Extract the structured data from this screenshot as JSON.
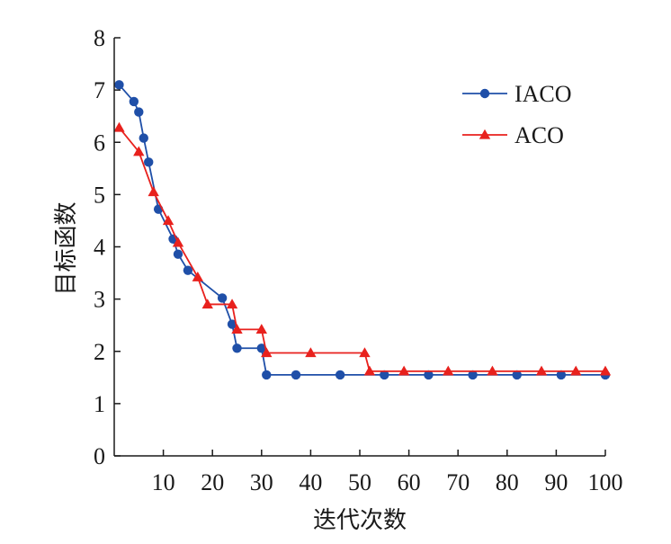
{
  "chart_data": {
    "type": "line",
    "xlabel": "迭代次数",
    "ylabel": "目标函数",
    "xlim": [
      0,
      100
    ],
    "ylim": [
      0,
      8
    ],
    "x_ticks": [
      "10",
      "20",
      "30",
      "40",
      "50",
      "60",
      "70",
      "80",
      "90",
      "100"
    ],
    "y_ticks": [
      "0",
      "1",
      "2",
      "3",
      "4",
      "5",
      "6",
      "7",
      "8"
    ],
    "legend_position": "top-right",
    "grid": false,
    "series": [
      {
        "name": "IACO",
        "color": "#1f4fa8",
        "marker": "circle",
        "points": [
          [
            1,
            7.1
          ],
          [
            4,
            6.78
          ],
          [
            5,
            6.58
          ],
          [
            6,
            6.08
          ],
          [
            7,
            5.62
          ],
          [
            9,
            4.72
          ],
          [
            12,
            4.15
          ],
          [
            13,
            3.86
          ],
          [
            15,
            3.55
          ],
          [
            22,
            3.02
          ],
          [
            24,
            2.52
          ],
          [
            25,
            2.06
          ],
          [
            30,
            2.06
          ],
          [
            31,
            1.55
          ],
          [
            37,
            1.55
          ],
          [
            46,
            1.55
          ],
          [
            55,
            1.55
          ],
          [
            64,
            1.55
          ],
          [
            73,
            1.55
          ],
          [
            82,
            1.55
          ],
          [
            91,
            1.55
          ],
          [
            100,
            1.55
          ]
        ]
      },
      {
        "name": "ACO",
        "color": "#e8211d",
        "marker": "triangle",
        "points": [
          [
            1,
            6.28
          ],
          [
            5,
            5.82
          ],
          [
            8,
            5.05
          ],
          [
            11,
            4.5
          ],
          [
            13,
            4.08
          ],
          [
            17,
            3.42
          ],
          [
            19,
            2.9
          ],
          [
            24,
            2.9
          ],
          [
            25,
            2.42
          ],
          [
            30,
            2.42
          ],
          [
            31,
            1.97
          ],
          [
            40,
            1.97
          ],
          [
            51,
            1.97
          ],
          [
            52,
            1.62
          ],
          [
            59,
            1.62
          ],
          [
            68,
            1.62
          ],
          [
            77,
            1.62
          ],
          [
            87,
            1.62
          ],
          [
            94,
            1.62
          ],
          [
            100,
            1.62
          ]
        ]
      }
    ]
  }
}
